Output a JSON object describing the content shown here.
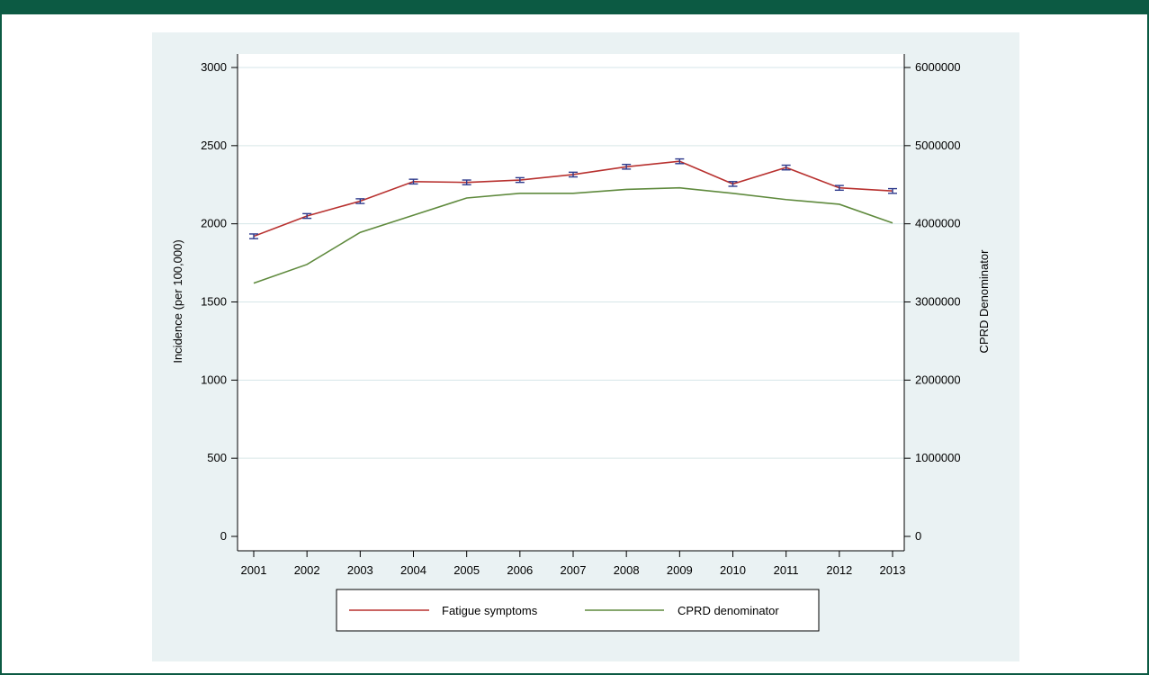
{
  "colors": {
    "frame": "#0c5a43",
    "panel_bg": "#eaf2f3",
    "fatigue": "#b8312f",
    "cprd": "#5f8a3d",
    "grid": "#d6e6e8",
    "errorbar": "#2e3a8c"
  },
  "chart_data": {
    "type": "line",
    "title": "",
    "x": [
      "2001",
      "2002",
      "2003",
      "2004",
      "2005",
      "2006",
      "2007",
      "2008",
      "2009",
      "2010",
      "2011",
      "2012",
      "2013"
    ],
    "xlabel": "",
    "ylabel_left": "Incidence (per 100,000)",
    "ylabel_right": "CPRD Denominator",
    "ylim_left": [
      0,
      3000
    ],
    "ylim_right": [
      0,
      6000000
    ],
    "yticks_left": [
      "0",
      "500",
      "1000",
      "1500",
      "2000",
      "2500",
      "3000"
    ],
    "yticks_right": [
      "0",
      "1000000",
      "2000000",
      "3000000",
      "4000000",
      "5000000",
      "6000000"
    ],
    "grid": true,
    "legend_position": "bottom",
    "series": [
      {
        "name": "Fatigue symptoms",
        "axis": "left",
        "values": [
          1920,
          2050,
          2145,
          2270,
          2265,
          2280,
          2315,
          2365,
          2400,
          2255,
          2360,
          2230,
          2210
        ],
        "error": [
          15,
          15,
          15,
          15,
          15,
          15,
          15,
          15,
          15,
          15,
          15,
          15,
          15
        ]
      },
      {
        "name": "CPRD denominator",
        "axis": "right",
        "values": [
          3240000,
          3480000,
          3890000,
          4110000,
          4330000,
          4390000,
          4390000,
          4440000,
          4460000,
          4390000,
          4310000,
          4250000,
          4010000
        ]
      }
    ]
  }
}
